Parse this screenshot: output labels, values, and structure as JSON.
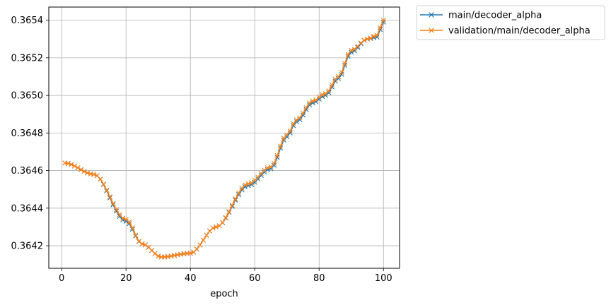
{
  "chart_data": {
    "type": "line",
    "title": "",
    "xlabel": "epoch",
    "ylabel": "",
    "xlim": [
      -4,
      105
    ],
    "ylim": [
      0.36408,
      0.36547
    ],
    "xticks": [
      0,
      20,
      40,
      60,
      80,
      100
    ],
    "yticks": [
      0.3642,
      0.3644,
      0.3646,
      0.3648,
      0.365,
      0.3652,
      0.3654
    ],
    "ytick_labels": [
      "0.3642",
      "0.3644",
      "0.3646",
      "0.3648",
      "0.3650",
      "0.3652",
      "0.3654"
    ],
    "grid": true,
    "legend_position": "outside-top-right",
    "marker": "x",
    "x": [
      1,
      10,
      20,
      25,
      31,
      40,
      48,
      58,
      65,
      70,
      73,
      78,
      82,
      86,
      90,
      95,
      98,
      100
    ],
    "series": [
      {
        "name": "main/decoder_alpha",
        "color": "#1f77b4",
        "values": [
          0.36464,
          0.36458,
          0.36433,
          0.36421,
          0.36414,
          0.36416,
          0.3643,
          0.36452,
          0.36461,
          0.36478,
          0.36486,
          0.36496,
          0.365,
          0.36509,
          0.36523,
          0.3653,
          0.36531,
          0.36539
        ]
      },
      {
        "name": "validation/main/decoder_alpha",
        "color": "#ff7f0e",
        "values": [
          0.36464,
          0.36458,
          0.36434,
          0.36421,
          0.36414,
          0.36416,
          0.3643,
          0.36453,
          0.36462,
          0.36479,
          0.36487,
          0.36497,
          0.36501,
          0.3651,
          0.36524,
          0.3653,
          0.36532,
          0.3654
        ]
      }
    ]
  }
}
